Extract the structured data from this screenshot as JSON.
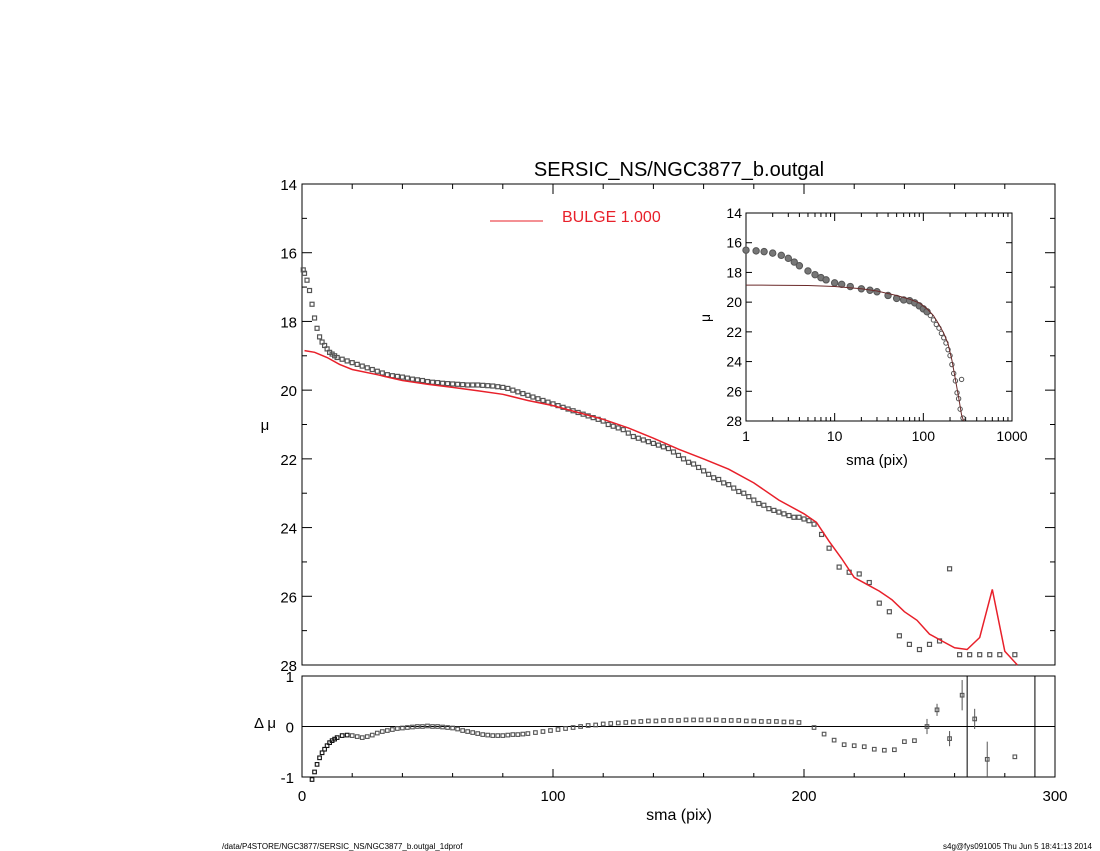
{
  "footer": {
    "left": "/data/P4STORE/NGC3877/SERSIC_NS/NGC3877_b.outgal_1dprof",
    "right": "s4g@fys091005  Thu Jun  5 18:41:13 2014"
  },
  "chart_data": {
    "type": "scatter",
    "title": "SERSIC_NS/NGC3877_b.outgal",
    "colors": {
      "model": "#e8202a",
      "data": "#555555",
      "axes": "#000000",
      "inset_model": "#6b2a2a"
    },
    "main": {
      "xlabel": "sma (pix)",
      "ylabel": "μ",
      "xlim": [
        0,
        300
      ],
      "ylim": [
        28,
        14
      ],
      "y_inverted": true,
      "xticks": [
        0,
        100,
        200,
        300
      ],
      "yticks": [
        14,
        16,
        18,
        20,
        22,
        24,
        26,
        28
      ],
      "legend": {
        "label": "BULGE  1.000",
        "placement": "top-center"
      },
      "series": [
        {
          "name": "BULGE  1.000",
          "kind": "line",
          "x": [
            1,
            5,
            10,
            15,
            20,
            30,
            40,
            50,
            60,
            70,
            80,
            90,
            100,
            110,
            120,
            130,
            140,
            150,
            160,
            170,
            180,
            190,
            200,
            205,
            210,
            215,
            220,
            225,
            230,
            235,
            240,
            245,
            250,
            255,
            260,
            265,
            270,
            275,
            280,
            285
          ],
          "y": [
            18.85,
            18.9,
            19.05,
            19.25,
            19.4,
            19.55,
            19.72,
            19.83,
            19.92,
            20.02,
            20.12,
            20.3,
            20.45,
            20.65,
            20.85,
            21.1,
            21.4,
            21.72,
            22.0,
            22.3,
            22.7,
            23.2,
            23.6,
            23.85,
            24.4,
            24.9,
            25.45,
            25.65,
            25.85,
            26.1,
            26.45,
            26.7,
            27.1,
            27.3,
            27.5,
            27.55,
            27.2,
            25.8,
            27.6,
            28.0
          ]
        },
        {
          "kind": "points",
          "x": [
            0.5,
            1,
            2,
            3,
            4,
            5,
            6,
            7,
            8,
            9,
            10,
            11,
            12,
            13,
            14,
            16,
            18,
            20,
            22,
            24,
            26,
            28,
            30,
            32,
            34,
            36,
            38,
            40,
            42,
            44,
            46,
            48,
            50,
            52,
            54,
            56,
            58,
            60,
            62,
            64,
            66,
            68,
            70,
            72,
            74,
            76,
            78,
            80,
            82,
            84,
            86,
            88,
            90,
            92,
            94,
            96,
            98,
            100,
            102,
            104,
            106,
            108,
            110,
            112,
            114,
            116,
            118,
            120,
            122,
            124,
            126,
            128,
            130,
            132,
            134,
            136,
            138,
            140,
            142,
            144,
            146,
            148,
            150,
            152,
            154,
            156,
            158,
            160,
            162,
            164,
            166,
            168,
            170,
            172,
            174,
            176,
            178,
            180,
            182,
            184,
            186,
            188,
            190,
            192,
            194,
            196,
            198,
            200,
            202,
            204,
            207,
            210,
            214,
            218,
            222,
            226,
            230,
            234,
            238,
            242,
            246,
            250,
            254,
            258,
            262,
            266,
            270,
            274,
            278,
            284
          ],
          "y": [
            16.5,
            16.6,
            16.8,
            17.1,
            17.5,
            17.9,
            18.2,
            18.45,
            18.6,
            18.7,
            18.8,
            18.9,
            18.95,
            19.0,
            19.05,
            19.1,
            19.15,
            19.2,
            19.25,
            19.3,
            19.35,
            19.4,
            19.45,
            19.5,
            19.55,
            19.58,
            19.6,
            19.62,
            19.65,
            19.68,
            19.7,
            19.72,
            19.75,
            19.77,
            19.78,
            19.8,
            19.81,
            19.82,
            19.83,
            19.84,
            19.85,
            19.85,
            19.85,
            19.86,
            19.87,
            19.88,
            19.9,
            19.92,
            19.95,
            20.0,
            20.05,
            20.1,
            20.15,
            20.2,
            20.25,
            20.3,
            20.35,
            20.4,
            20.45,
            20.5,
            20.55,
            20.6,
            20.65,
            20.7,
            20.75,
            20.8,
            20.85,
            20.9,
            21.0,
            21.05,
            21.1,
            21.15,
            21.25,
            21.35,
            21.4,
            21.45,
            21.5,
            21.55,
            21.6,
            21.65,
            21.7,
            21.8,
            21.9,
            22.0,
            22.1,
            22.15,
            22.25,
            22.35,
            22.45,
            22.55,
            22.6,
            22.7,
            22.75,
            22.85,
            22.95,
            23.0,
            23.1,
            23.2,
            23.3,
            23.35,
            23.45,
            23.5,
            23.55,
            23.6,
            23.65,
            23.7,
            23.7,
            23.75,
            23.8,
            23.9,
            24.2,
            24.6,
            25.15,
            25.3,
            25.35,
            25.6,
            26.2,
            26.45,
            27.15,
            27.4,
            27.55,
            27.4,
            27.3,
            25.2,
            27.7,
            27.7,
            27.7,
            27.7,
            27.7,
            27.7
          ]
        }
      ]
    },
    "residual": {
      "ylabel": "Δ μ",
      "ylim": [
        -1,
        1
      ],
      "yticks": [
        -1,
        0,
        1
      ],
      "x": [
        4,
        5,
        6,
        7,
        8,
        9,
        10,
        11,
        12,
        13,
        14,
        16,
        18,
        20,
        22,
        24,
        26,
        28,
        30,
        32,
        34,
        36,
        38,
        40,
        42,
        44,
        46,
        48,
        50,
        52,
        54,
        56,
        58,
        60,
        62,
        64,
        66,
        68,
        70,
        72,
        74,
        76,
        78,
        80,
        82,
        84,
        86,
        88,
        90,
        93,
        96,
        99,
        102,
        105,
        108,
        111,
        114,
        117,
        120,
        123,
        126,
        129,
        132,
        135,
        138,
        141,
        144,
        147,
        150,
        153,
        156,
        159,
        162,
        165,
        168,
        171,
        174,
        177,
        180,
        183,
        186,
        189,
        192,
        195,
        198,
        204,
        208,
        212,
        216,
        220,
        224,
        228,
        232,
        236,
        240,
        244,
        249,
        253,
        258,
        263,
        268,
        273,
        284
      ],
      "y": [
        -1.05,
        -0.9,
        -0.75,
        -0.62,
        -0.52,
        -0.45,
        -0.38,
        -0.32,
        -0.28,
        -0.25,
        -0.22,
        -0.18,
        -0.17,
        -0.18,
        -0.2,
        -0.22,
        -0.2,
        -0.17,
        -0.13,
        -0.1,
        -0.08,
        -0.06,
        -0.04,
        -0.03,
        -0.02,
        -0.01,
        0.0,
        0.0,
        0.01,
        0.0,
        0.0,
        -0.01,
        -0.02,
        -0.03,
        -0.05,
        -0.08,
        -0.1,
        -0.12,
        -0.14,
        -0.16,
        -0.17,
        -0.18,
        -0.18,
        -0.18,
        -0.17,
        -0.16,
        -0.16,
        -0.15,
        -0.14,
        -0.12,
        -0.1,
        -0.08,
        -0.06,
        -0.04,
        -0.02,
        0.0,
        0.02,
        0.03,
        0.05,
        0.06,
        0.07,
        0.08,
        0.09,
        0.1,
        0.11,
        0.11,
        0.12,
        0.12,
        0.12,
        0.13,
        0.13,
        0.13,
        0.13,
        0.13,
        0.12,
        0.12,
        0.12,
        0.11,
        0.11,
        0.1,
        0.1,
        0.1,
        0.09,
        0.09,
        0.08,
        -0.02,
        -0.15,
        -0.27,
        -0.36,
        -0.38,
        -0.4,
        -0.45,
        -0.47,
        -0.46,
        -0.3,
        -0.28,
        0.0,
        0.33,
        -0.24,
        0.62,
        0.15,
        -0.65,
        -0.6
      ]
    },
    "inset": {
      "xlabel": "sma (pix)",
      "ylabel": "μ",
      "xscale": "log",
      "xlim": [
        1,
        1000
      ],
      "ylim": [
        28,
        14
      ],
      "xticks": [
        1,
        10,
        100,
        1000
      ],
      "yticks": [
        14,
        16,
        18,
        20,
        22,
        24,
        26,
        28
      ],
      "points": {
        "x": [
          1,
          1.3,
          1.6,
          2,
          2.5,
          3,
          3.5,
          4,
          5,
          6,
          7,
          8,
          10,
          12,
          15,
          20,
          25,
          30,
          40,
          50,
          60,
          70,
          80,
          90,
          100,
          110,
          120,
          130,
          140,
          150,
          160,
          170,
          180,
          190,
          200,
          210,
          220,
          230,
          240,
          250,
          260,
          270,
          280
        ],
        "y": [
          16.5,
          16.55,
          16.6,
          16.7,
          16.85,
          17.05,
          17.3,
          17.55,
          17.9,
          18.15,
          18.35,
          18.5,
          18.7,
          18.8,
          18.95,
          19.1,
          19.2,
          19.3,
          19.55,
          19.75,
          19.85,
          19.9,
          20.05,
          20.25,
          20.45,
          20.65,
          20.9,
          21.2,
          21.5,
          21.75,
          22.1,
          22.4,
          22.75,
          23.2,
          23.6,
          24.2,
          24.8,
          25.3,
          26.1,
          26.5,
          27.2,
          25.2,
          27.8
        ]
      },
      "model": {
        "x": [
          1,
          2,
          5,
          10,
          20,
          30,
          50,
          70,
          90,
          110,
          130,
          150,
          170,
          190,
          210,
          230,
          250,
          270,
          285
        ],
        "y": [
          18.85,
          18.86,
          18.88,
          18.95,
          19.1,
          19.25,
          19.55,
          19.8,
          20.05,
          20.45,
          20.9,
          21.5,
          22.1,
          22.8,
          23.9,
          25.2,
          26.4,
          27.6,
          28.0
        ]
      }
    }
  }
}
